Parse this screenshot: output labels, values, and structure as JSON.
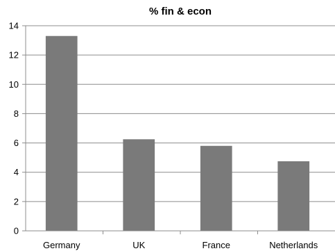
{
  "chart_data": {
    "type": "bar",
    "title": "% fin & econ",
    "categories": [
      "Germany",
      "UK",
      "France",
      "Netherlands"
    ],
    "values": [
      13.3,
      6.25,
      5.8,
      4.75
    ],
    "ylim": [
      0,
      14
    ],
    "yticks": [
      0,
      2,
      4,
      6,
      8,
      10,
      12,
      14
    ],
    "grid": true,
    "bar_color": "#7a7a7a"
  }
}
